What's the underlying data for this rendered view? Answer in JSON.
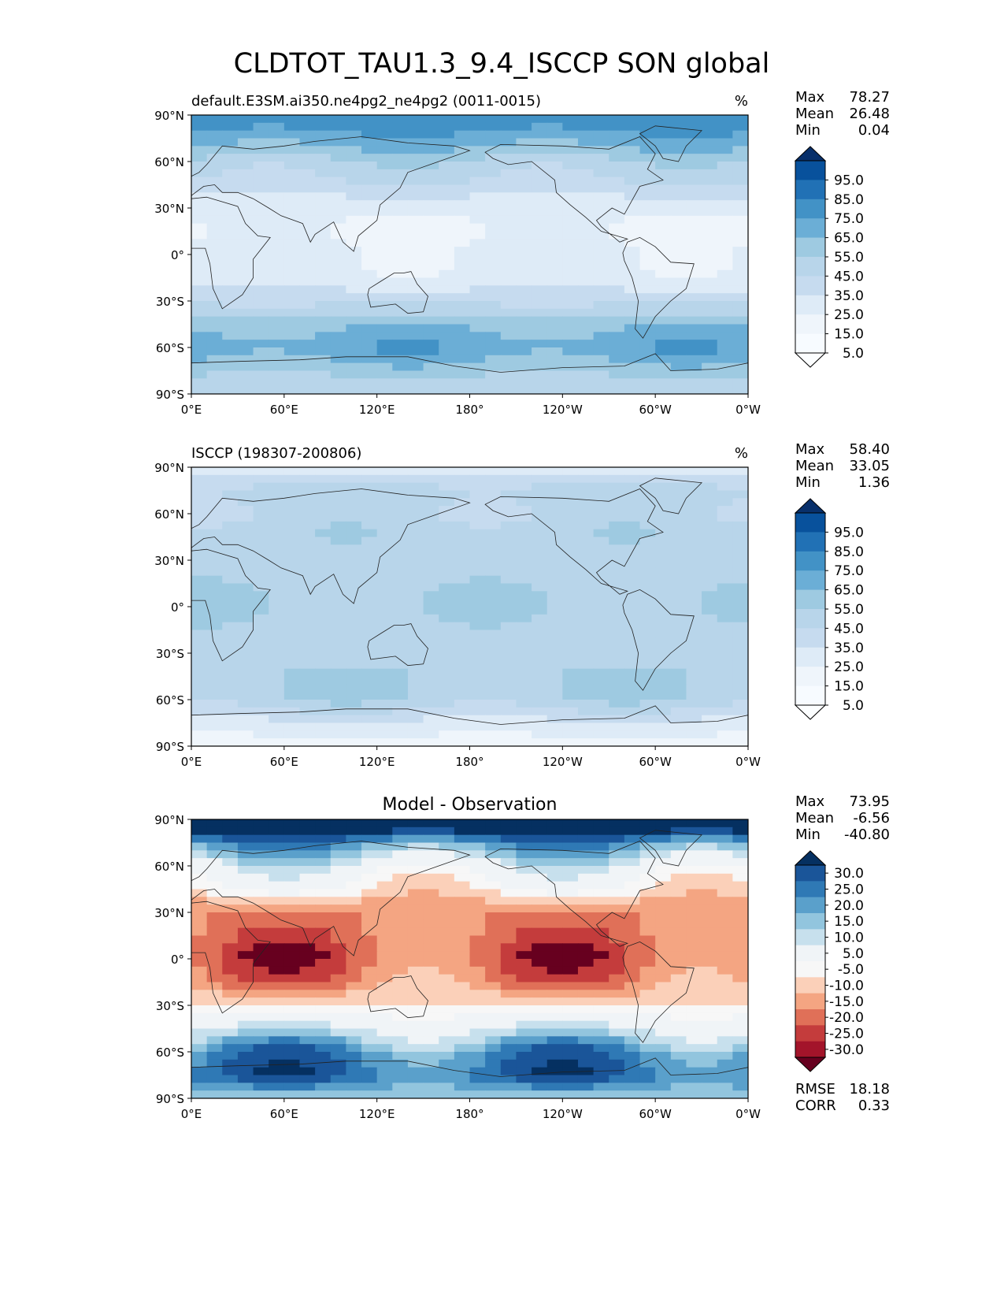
{
  "figure": {
    "title": "CLDTOT_TAU1.3_9.4_ISCCP SON global"
  },
  "axes": {
    "y_ticks": [
      "90°N",
      "60°N",
      "30°N",
      "0°",
      "30°S",
      "60°S",
      "90°S"
    ],
    "y_values": [
      90,
      60,
      30,
      0,
      -30,
      -60,
      -90
    ],
    "x_ticks": [
      "0°E",
      "60°E",
      "120°E",
      "180°",
      "120°W",
      "60°W",
      "0°W"
    ],
    "x_values": [
      0,
      60,
      120,
      180,
      240,
      300,
      360
    ]
  },
  "colorbars": {
    "absolute": {
      "labels": [
        "95.0",
        "85.0",
        "75.0",
        "65.0",
        "55.0",
        "45.0",
        "35.0",
        "25.0",
        "15.0",
        "5.0"
      ],
      "colors": [
        "#08306b",
        "#08519c",
        "#2171b5",
        "#4292c6",
        "#6baed6",
        "#9ecae1",
        "#b8d5ea",
        "#c6dbef",
        "#deebf7",
        "#eff5fb",
        "#f7fbff",
        "#fcfeff"
      ]
    },
    "difference": {
      "labels": [
        "30.0",
        "25.0",
        "20.0",
        "15.0",
        "10.0",
        "5.0",
        "-5.0",
        "-10.0",
        "-15.0",
        "-20.0",
        "-25.0",
        "-30.0"
      ],
      "colors": [
        "#053061",
        "#1a5599",
        "#2f79b5",
        "#5aa0cb",
        "#92c5de",
        "#c7e0ed",
        "#f0f4f7",
        "#f7f7f7",
        "#fbd0b9",
        "#f4a582",
        "#e07058",
        "#c43c3c",
        "#a3142a",
        "#67001f"
      ]
    }
  },
  "chart_data": [
    {
      "type": "heatmap",
      "title": "default.E3SM.ai350.ne4pg2_ne4pg2 (0011-0015)",
      "units": "%",
      "xlim": [
        0,
        360
      ],
      "ylim": [
        -90,
        90
      ],
      "xlabel": "",
      "ylabel": "",
      "stats": {
        "max_label": "Max",
        "max": "78.27",
        "mean_label": "Mean",
        "mean": "26.48",
        "min_label": "Min",
        "min": "0.04"
      },
      "colorbar": "absolute",
      "zonal_profile": {
        "lat": [
          90,
          75,
          60,
          45,
          30,
          15,
          0,
          -15,
          -30,
          -45,
          -60,
          -75,
          -90
        ],
        "values": [
          72,
          62,
          42,
          32,
          17,
          14,
          18,
          19,
          32,
          52,
          63,
          48,
          35
        ]
      }
    },
    {
      "type": "heatmap",
      "title": "ISCCP (198307-200806)",
      "units": "%",
      "xlim": [
        0,
        360
      ],
      "ylim": [
        -90,
        90
      ],
      "xlabel": "",
      "ylabel": "",
      "stats": {
        "max_label": "Max",
        "max": "58.40",
        "mean_label": "Mean",
        "mean": "33.05",
        "min_label": "Min",
        "min": "1.36"
      },
      "colorbar": "absolute",
      "zonal_profile": {
        "lat": [
          90,
          75,
          60,
          45,
          30,
          15,
          0,
          -15,
          -30,
          -45,
          -60,
          -75,
          -90
        ],
        "values": [
          20,
          40,
          38,
          42,
          40,
          42,
          45,
          40,
          40,
          45,
          43,
          22,
          10
        ]
      }
    },
    {
      "type": "heatmap",
      "title": "Model - Observation",
      "units": "",
      "xlim": [
        0,
        360
      ],
      "ylim": [
        -90,
        90
      ],
      "xlabel": "",
      "ylabel": "",
      "stats": {
        "max_label": "Max",
        "max": "73.95",
        "mean_label": "Mean",
        "mean": "-6.56",
        "min_label": "Min",
        "min": "-40.80"
      },
      "extra_stats": {
        "rmse_label": "RMSE",
        "rmse": "18.18",
        "corr_label": "CORR",
        "corr": "0.33"
      },
      "colorbar": "difference",
      "zonal_profile": {
        "lat": [
          90,
          75,
          60,
          45,
          30,
          15,
          0,
          -15,
          -30,
          -45,
          -60,
          -75,
          -90
        ],
        "values": [
          45,
          20,
          2,
          -8,
          -20,
          -22,
          -25,
          -20,
          -10,
          5,
          20,
          25,
          10
        ]
      }
    }
  ]
}
